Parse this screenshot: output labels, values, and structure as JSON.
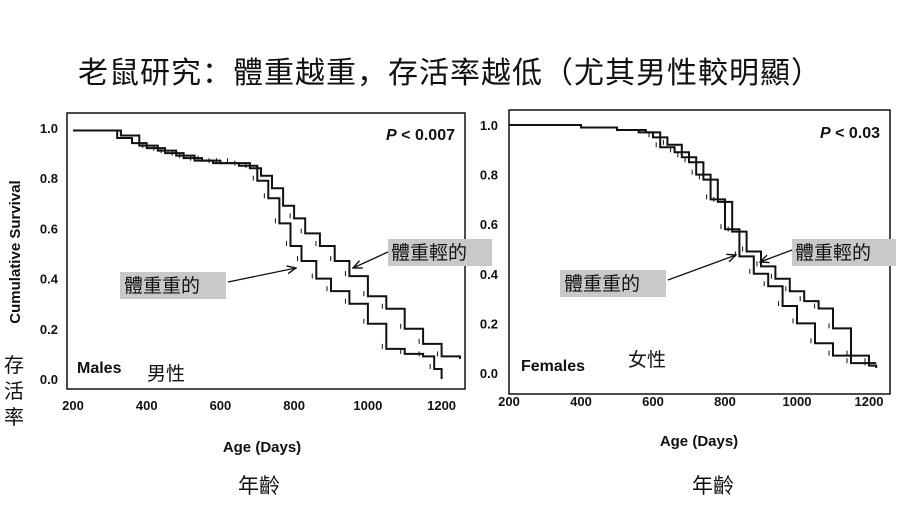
{
  "title": "老鼠研究：體重越重，存活率越低（尤其男性較明顯）",
  "y_axis_label_zh": [
    "存",
    "活",
    "率"
  ],
  "chart_data": [
    {
      "type": "line",
      "panel": "Males",
      "sex_label": "Males",
      "sex_label_zh": "男性",
      "p_value_prefix": "P",
      "p_value_text": " < 0.007",
      "xlabel": "Age (Days)",
      "xlabel_zh": "年齡",
      "ylabel": "Cumulative Survival",
      "xlim": [
        200,
        1250
      ],
      "ylim": [
        0.0,
        1.0
      ],
      "x_ticks": [
        200,
        400,
        600,
        800,
        1000,
        1200
      ],
      "y_ticks": [
        "0.0",
        "0.2",
        "0.4",
        "0.6",
        "0.8",
        "1.0"
      ],
      "annotations": {
        "heavy": "體重重的",
        "light": "體重輕的"
      },
      "series": [
        {
          "name": "體重重的",
          "x": [
            200,
            280,
            320,
            360,
            400,
            450,
            500,
            550,
            600,
            650,
            700,
            730,
            760,
            790,
            820,
            860,
            900,
            950,
            1000,
            1050,
            1100,
            1150,
            1180,
            1200
          ],
          "y": [
            0.99,
            0.99,
            0.96,
            0.94,
            0.92,
            0.9,
            0.88,
            0.87,
            0.86,
            0.85,
            0.79,
            0.72,
            0.62,
            0.53,
            0.47,
            0.4,
            0.35,
            0.3,
            0.22,
            0.12,
            0.1,
            0.09,
            0.04,
            0.0
          ]
        },
        {
          "name": "體重輕的",
          "x": [
            200,
            280,
            330,
            380,
            430,
            480,
            530,
            580,
            630,
            680,
            710,
            740,
            770,
            800,
            830,
            870,
            910,
            950,
            1000,
            1050,
            1100,
            1150,
            1200,
            1250
          ],
          "y": [
            0.99,
            0.99,
            0.97,
            0.93,
            0.91,
            0.89,
            0.87,
            0.86,
            0.86,
            0.84,
            0.81,
            0.76,
            0.69,
            0.64,
            0.58,
            0.53,
            0.47,
            0.41,
            0.33,
            0.28,
            0.2,
            0.14,
            0.09,
            0.08
          ]
        }
      ]
    },
    {
      "type": "line",
      "panel": "Females",
      "sex_label": "Females",
      "sex_label_zh": "女性",
      "p_value_prefix": "P",
      "p_value_text": " < 0.03",
      "xlabel": "Age (Days)",
      "xlabel_zh": "年齡",
      "ylabel": "",
      "xlim": [
        200,
        1250
      ],
      "ylim": [
        0.0,
        1.0
      ],
      "x_ticks": [
        200,
        400,
        600,
        800,
        1000,
        1200
      ],
      "y_ticks": [
        "0.0",
        "0.2",
        "0.4",
        "0.6",
        "0.8",
        "1.0"
      ],
      "annotations": {
        "heavy": "體重重的",
        "light": "體重輕的"
      },
      "series": [
        {
          "name": "體重重的",
          "x": [
            200,
            400,
            500,
            560,
            600,
            640,
            680,
            720,
            760,
            800,
            840,
            880,
            920,
            960,
            1000,
            1050,
            1100,
            1150,
            1200,
            1220
          ],
          "y": [
            1.0,
            0.99,
            0.98,
            0.97,
            0.95,
            0.92,
            0.87,
            0.8,
            0.7,
            0.58,
            0.47,
            0.4,
            0.35,
            0.27,
            0.2,
            0.12,
            0.07,
            0.04,
            0.03,
            0.02
          ]
        },
        {
          "name": "體重輕的",
          "x": [
            200,
            400,
            500,
            580,
            620,
            660,
            700,
            740,
            780,
            820,
            860,
            900,
            940,
            980,
            1020,
            1060,
            1100,
            1150,
            1200,
            1220
          ],
          "y": [
            1.0,
            0.99,
            0.98,
            0.97,
            0.91,
            0.89,
            0.85,
            0.78,
            0.69,
            0.57,
            0.49,
            0.43,
            0.38,
            0.33,
            0.29,
            0.26,
            0.18,
            0.07,
            0.04,
            0.04
          ]
        }
      ]
    }
  ],
  "colors": {
    "line": "#111111",
    "label_bg": "#c9c9c9"
  }
}
